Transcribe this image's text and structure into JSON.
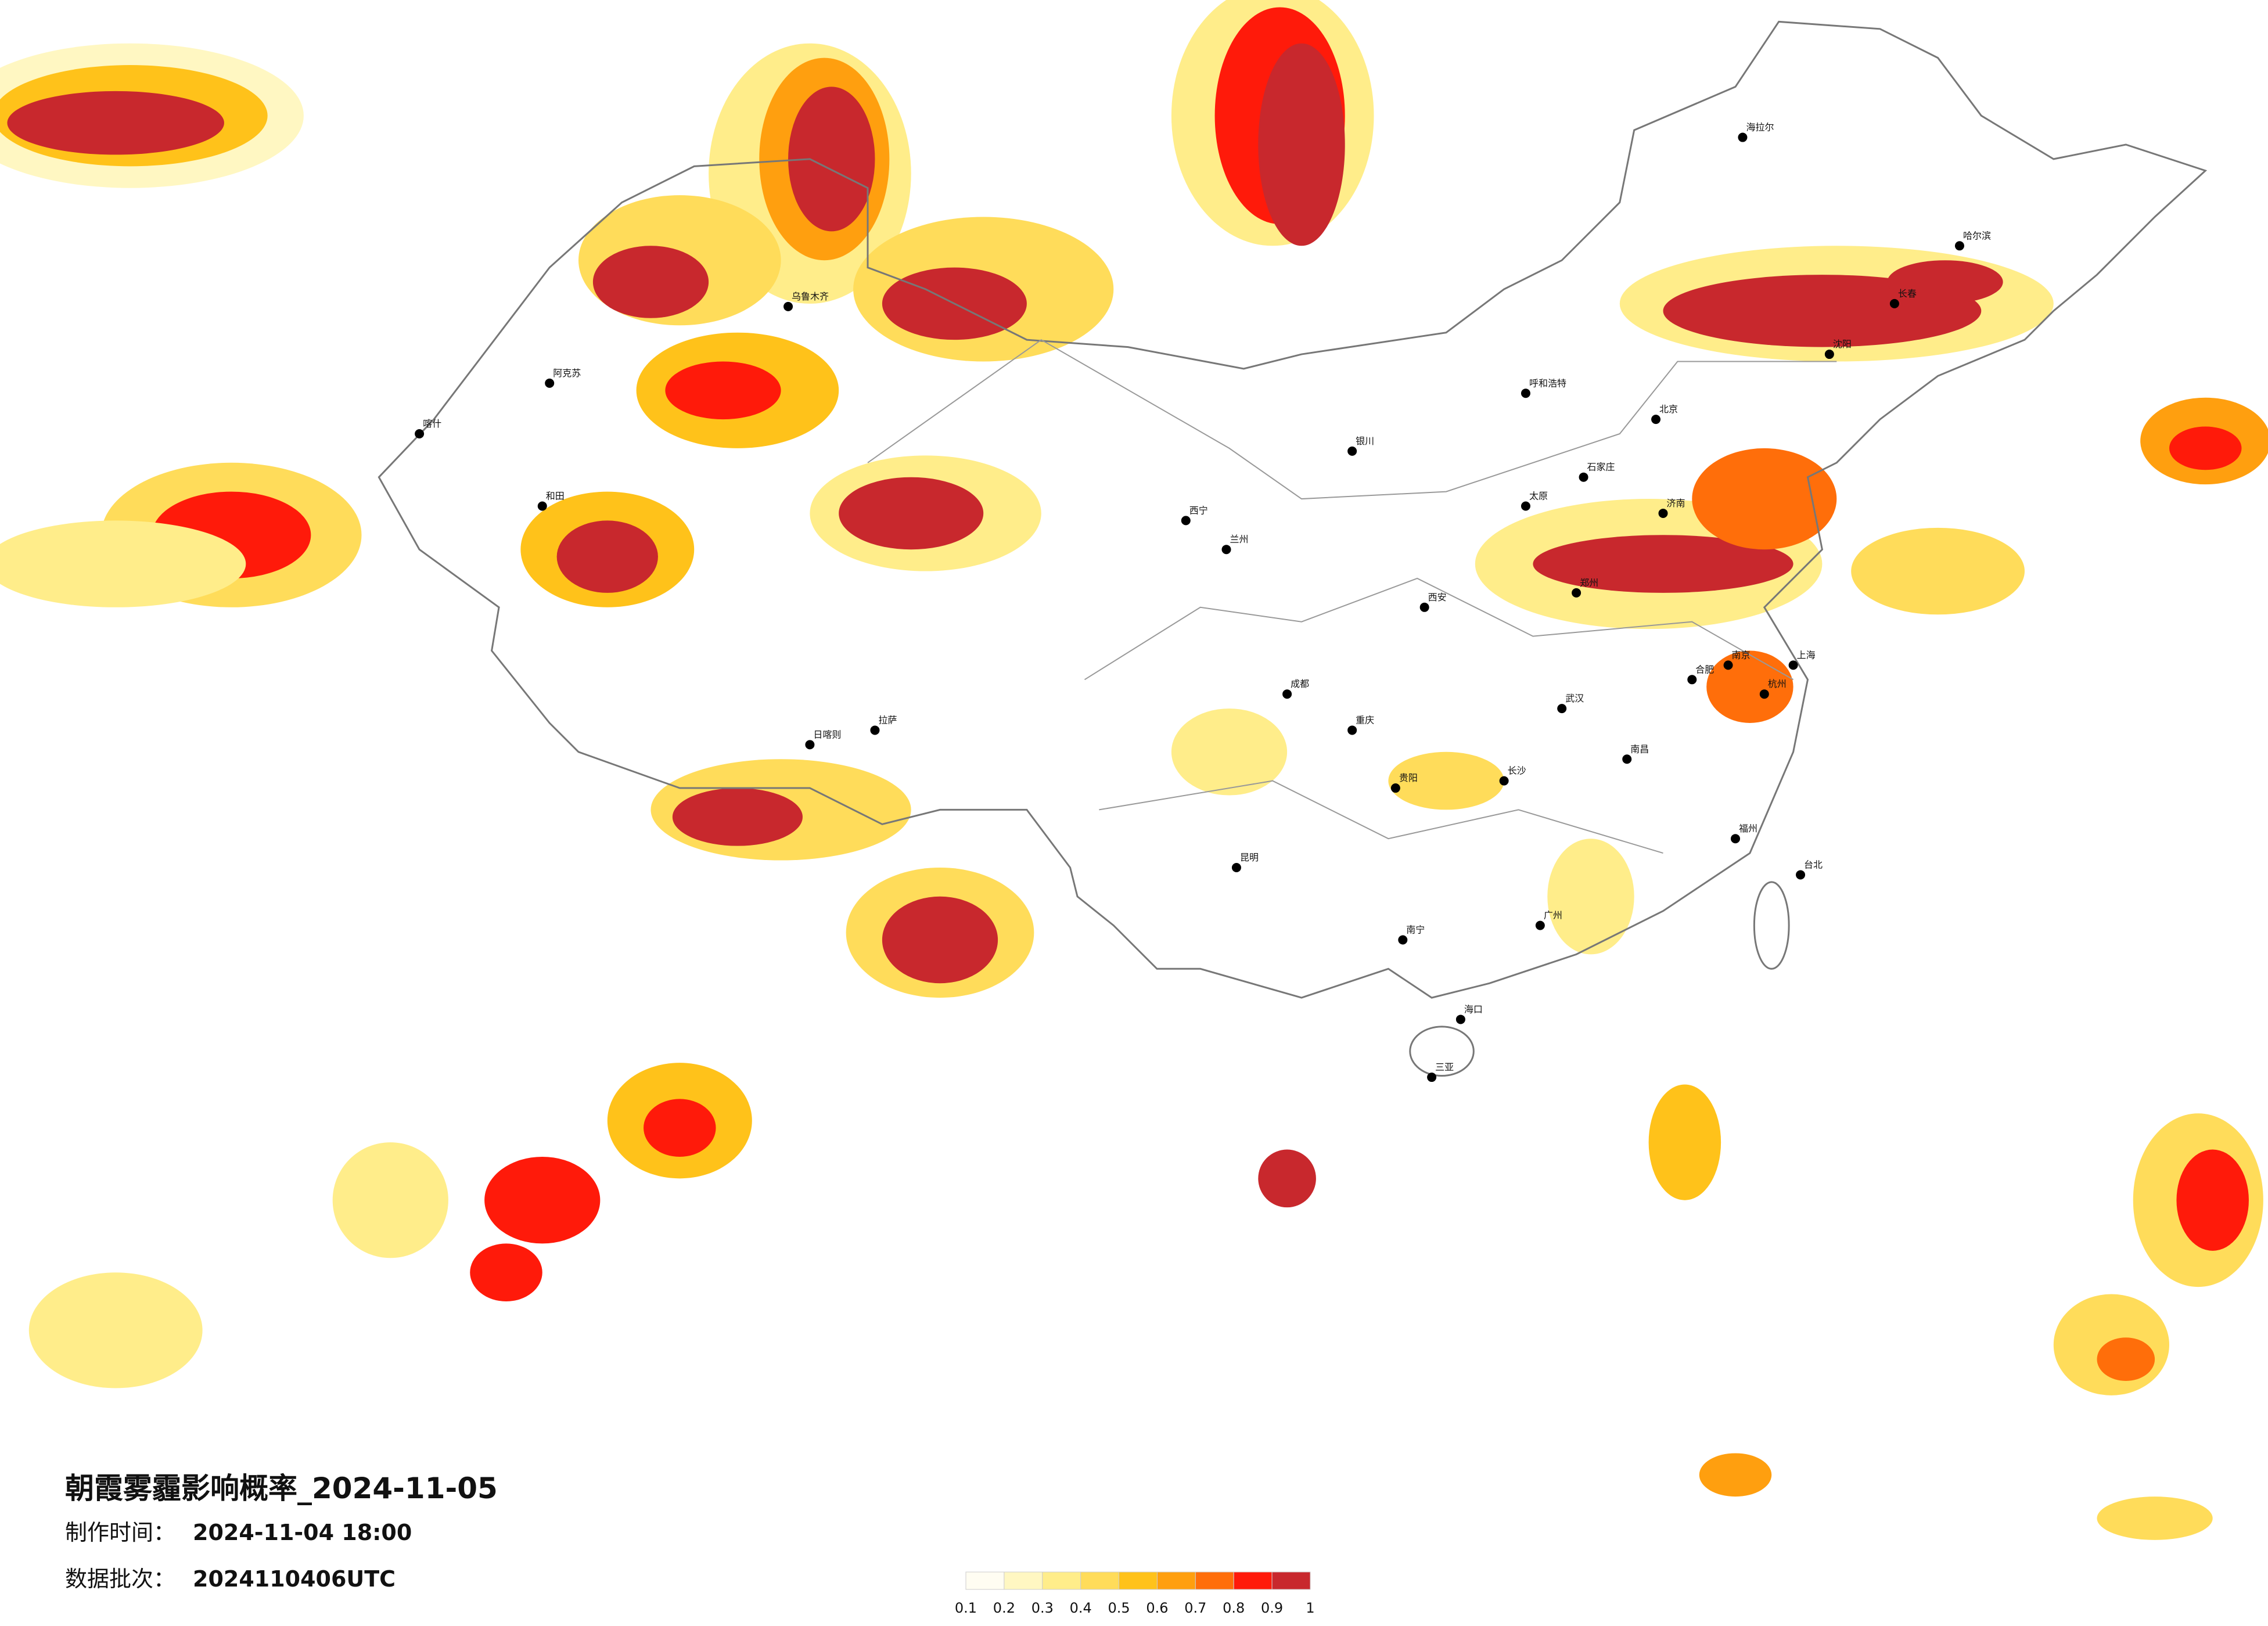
{
  "title": "朝霞雾霾影响概率_2024-11-05",
  "info": [
    {
      "label": "制作时间：",
      "value": "2024-11-04 18:00"
    },
    {
      "label": "数据批次：",
      "value": "2024110406UTC"
    }
  ],
  "legend": {
    "ticks": [
      0.1,
      0.2,
      0.3,
      0.4,
      0.5,
      0.6,
      0.7,
      0.8,
      0.9,
      1
    ],
    "colors": [
      "#fffdf2",
      "#fff7c2",
      "#ffed8a",
      "#ffdc5a",
      "#ffc21a",
      "#ff9f0f",
      "#ff6e0a",
      "#ff1a0a",
      "#c8282d"
    ]
  },
  "cities": [
    "乌鲁木齐",
    "喀什",
    "阿克苏",
    "和田",
    "拉萨",
    "日喀则",
    "西宁",
    "兰州",
    "成都",
    "重庆",
    "昆明",
    "贵阳",
    "南宁",
    "广州",
    "海口",
    "长沙",
    "武汉",
    "郑州",
    "西安",
    "太原",
    "石家庄",
    "北京",
    "济南",
    "南京",
    "上海",
    "杭州",
    "福州",
    "南昌",
    "合肥",
    "沈阳",
    "长春",
    "哈尔滨",
    "呼和浩特",
    "银川",
    "海拉尔",
    "台北",
    "三亚"
  ]
}
